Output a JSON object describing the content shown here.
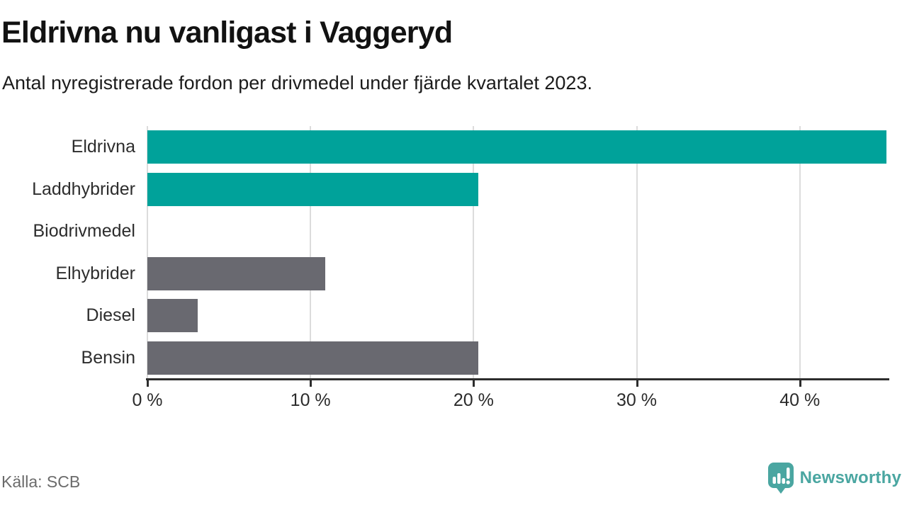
{
  "page": {
    "title": "Eldrivna nu vanligast i Vaggeryd",
    "subtitle": "Antal nyregistrerade fordon per drivmedel under fjärde kvartalet 2023.",
    "source": "Källa: SCB",
    "logo_text": "Newsworthy"
  },
  "colors": {
    "highlight": "#00a29a",
    "neutral": "#696970",
    "gridline": "#dcdcdc",
    "axis": "#2d2d2d",
    "logo_teal": "#4aa6a1"
  },
  "chart_data": {
    "type": "bar",
    "orientation": "horizontal",
    "title": "Eldrivna nu vanligast i Vaggeryd",
    "subtitle": "Antal nyregistrerade fordon per drivmedel under fjärde kvartalet 2023.",
    "categories": [
      "Eldrivna",
      "Laddhybrider",
      "Biodrivmedel",
      "Elhybrider",
      "Diesel",
      "Bensin"
    ],
    "values": [
      45.3,
      20.3,
      0,
      10.9,
      3.1,
      20.3
    ],
    "unit": "%",
    "bar_colors": [
      "#00a29a",
      "#00a29a",
      "#696970",
      "#696970",
      "#696970",
      "#696970"
    ],
    "xlabel": "",
    "ylabel": "",
    "xlim": [
      0,
      45.4
    ],
    "xticks": [
      {
        "value": 0,
        "label": "0 %"
      },
      {
        "value": 10,
        "label": "10 %"
      },
      {
        "value": 20,
        "label": "20 %"
      },
      {
        "value": 30,
        "label": "30 %"
      },
      {
        "value": 40,
        "label": "40 %"
      }
    ],
    "grid": "vertical",
    "legend": "none"
  }
}
